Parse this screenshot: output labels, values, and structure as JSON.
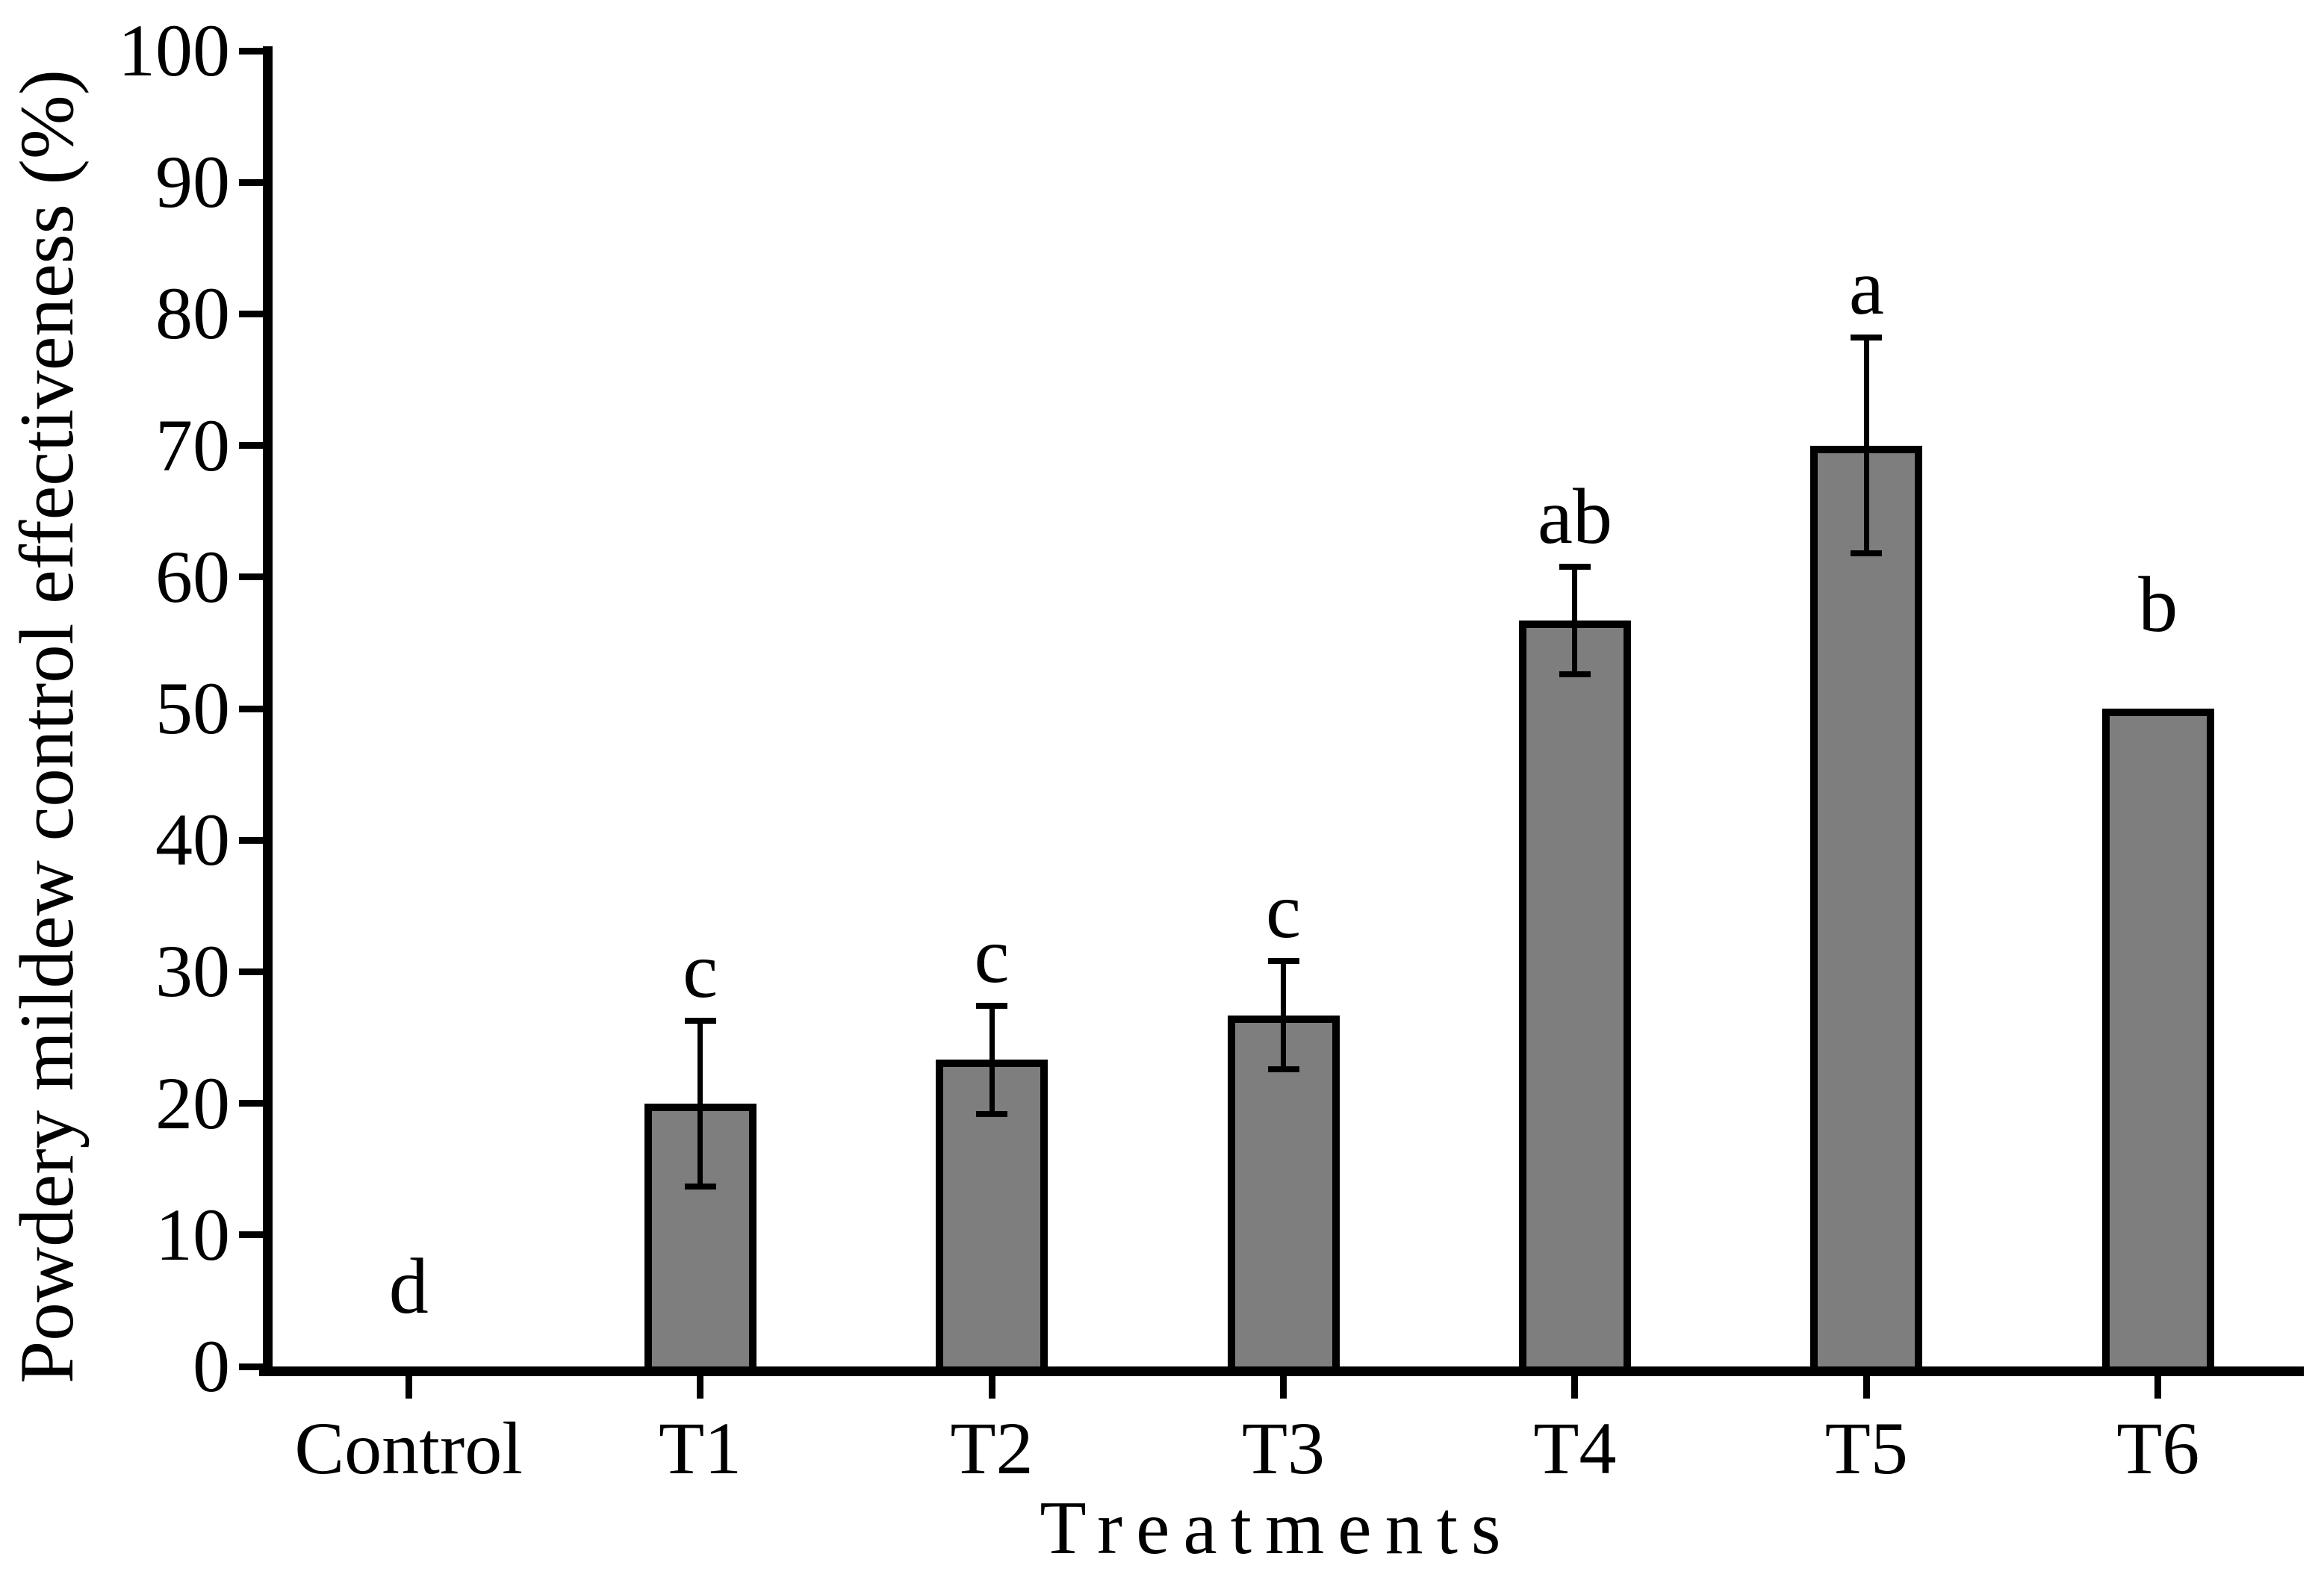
{
  "figure": {
    "background_color": "#ffffff",
    "text_color": "#000000"
  },
  "chart_data": {
    "type": "bar",
    "title": "",
    "xlabel": "Treatments",
    "ylabel": "Powdery mildew control effectiveness (%)",
    "categories": [
      "Control",
      "T1",
      "T2",
      "T3",
      "T4",
      "T5",
      "T6"
    ],
    "values": [
      0,
      20,
      23.3,
      26.7,
      56.7,
      70,
      50
    ],
    "errors": [
      0,
      6.3,
      4.1,
      4.1,
      4.1,
      8.2,
      0
    ],
    "sig_letters": [
      "d",
      "c",
      "c",
      "c",
      "ab",
      "a",
      "b"
    ],
    "ylim": [
      0,
      100
    ],
    "ytick_step": 10,
    "grid": false,
    "legend": null,
    "bar_color": "#7e7e7e",
    "bar_border_color": "#000000",
    "error_bar_color": "#000000"
  }
}
